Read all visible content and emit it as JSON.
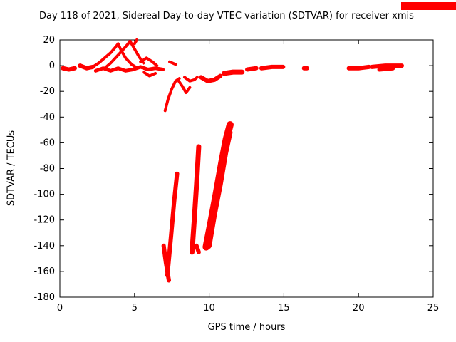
{
  "chart_data": {
    "type": "scatter",
    "title": "Day 118 of 2021, Sidereal Day-to-day VTEC variation (SDTVAR) for receiver xmis",
    "xlabel": "GPS time / hours",
    "ylabel": "SDTVAR / TECUs",
    "xlim": [
      0,
      25
    ],
    "ylim": [
      -180,
      20
    ],
    "xticks": [
      0,
      5,
      10,
      15,
      20,
      25
    ],
    "yticks": [
      20,
      0,
      -20,
      -40,
      -60,
      -80,
      -100,
      -120,
      -140,
      -160,
      -180
    ],
    "grid": false,
    "legend_position": "top-right-outside",
    "series_color": "#ff0000",
    "axis_color": "#000000",
    "strokes": [
      {
        "w": 6,
        "pts": [
          [
            0.2,
            -2
          ],
          [
            0.6,
            -3
          ],
          [
            1.0,
            -2
          ]
        ]
      },
      {
        "w": 6,
        "pts": [
          [
            1.35,
            0
          ],
          [
            1.8,
            -2
          ],
          [
            2.2,
            -1
          ]
        ]
      },
      {
        "w": 4,
        "pts": [
          [
            2.2,
            -1
          ],
          [
            2.6,
            2
          ],
          [
            3.0,
            6
          ],
          [
            3.4,
            10
          ],
          [
            3.7,
            14
          ],
          [
            3.9,
            17
          ]
        ]
      },
      {
        "w": 4,
        "pts": [
          [
            3.0,
            -2
          ],
          [
            3.4,
            2
          ],
          [
            3.8,
            7
          ],
          [
            4.2,
            12
          ],
          [
            4.5,
            16
          ],
          [
            4.7,
            19
          ]
        ]
      },
      {
        "w": 4,
        "pts": [
          [
            3.9,
            17
          ],
          [
            4.1,
            12
          ],
          [
            4.4,
            6
          ],
          [
            4.8,
            1
          ],
          [
            5.2,
            -2
          ]
        ]
      },
      {
        "w": 4,
        "pts": [
          [
            4.7,
            19
          ],
          [
            5.0,
            13
          ],
          [
            5.3,
            7
          ],
          [
            5.6,
            2
          ]
        ]
      },
      {
        "w": 4,
        "pts": [
          [
            5.0,
            17
          ],
          [
            5.15,
            20
          ]
        ]
      },
      {
        "w": 5,
        "pts": [
          [
            2.4,
            -4
          ],
          [
            2.9,
            -2
          ],
          [
            3.4,
            -4
          ],
          [
            3.9,
            -2
          ],
          [
            4.4,
            -4
          ],
          [
            4.9,
            -3
          ]
        ]
      },
      {
        "w": 5,
        "pts": [
          [
            4.9,
            -3
          ],
          [
            5.4,
            -1
          ],
          [
            5.9,
            -3
          ],
          [
            6.4,
            -2
          ],
          [
            6.9,
            -3
          ]
        ]
      },
      {
        "w": 4,
        "pts": [
          [
            5.4,
            3
          ],
          [
            5.8,
            6
          ],
          [
            6.2,
            3
          ],
          [
            6.5,
            0
          ]
        ]
      },
      {
        "w": 4,
        "pts": [
          [
            5.6,
            -5
          ],
          [
            6.0,
            -8
          ],
          [
            6.4,
            -6
          ]
        ]
      },
      {
        "w": 4,
        "pts": [
          [
            7.05,
            -35
          ],
          [
            7.25,
            -26
          ],
          [
            7.5,
            -18
          ],
          [
            7.75,
            -12
          ],
          [
            8.0,
            -10
          ]
        ]
      },
      {
        "w": 4,
        "pts": [
          [
            7.35,
            3
          ],
          [
            7.75,
            1
          ]
        ]
      },
      {
        "w": 4,
        "pts": [
          [
            7.9,
            -11
          ],
          [
            8.2,
            -16
          ],
          [
            8.45,
            -21
          ],
          [
            8.7,
            -17
          ]
        ]
      },
      {
        "w": 4,
        "pts": [
          [
            8.35,
            -9
          ],
          [
            8.7,
            -12
          ],
          [
            9.0,
            -11
          ],
          [
            9.2,
            -9
          ]
        ]
      },
      {
        "w": 6,
        "pts": [
          [
            9.45,
            -9
          ],
          [
            9.9,
            -12
          ],
          [
            10.35,
            -11
          ],
          [
            10.75,
            -8
          ]
        ]
      },
      {
        "w": 7,
        "pts": [
          [
            11.0,
            -6
          ],
          [
            11.6,
            -5
          ],
          [
            12.2,
            -5
          ]
        ]
      },
      {
        "w": 6,
        "pts": [
          [
            12.55,
            -3
          ],
          [
            13.15,
            -2
          ]
        ]
      },
      {
        "w": 6,
        "pts": [
          [
            13.5,
            -2
          ],
          [
            14.2,
            -1
          ],
          [
            14.95,
            -1
          ]
        ]
      },
      {
        "w": 6,
        "pts": [
          [
            16.35,
            -2
          ],
          [
            16.55,
            -2
          ]
        ]
      },
      {
        "w": 6,
        "pts": [
          [
            19.35,
            -2
          ],
          [
            20.0,
            -2
          ],
          [
            20.7,
            -1
          ]
        ]
      },
      {
        "w": 6,
        "pts": [
          [
            20.9,
            -1
          ],
          [
            21.8,
            0
          ],
          [
            22.9,
            0
          ]
        ]
      },
      {
        "w": 6,
        "pts": [
          [
            21.4,
            -3
          ],
          [
            22.3,
            -2
          ]
        ]
      },
      {
        "w": 6,
        "pts": [
          [
            6.95,
            -140
          ],
          [
            7.1,
            -153
          ],
          [
            7.3,
            -167
          ]
        ]
      },
      {
        "w": 6,
        "pts": [
          [
            7.2,
            -163
          ],
          [
            7.45,
            -132
          ],
          [
            7.65,
            -106
          ],
          [
            7.85,
            -84
          ]
        ]
      },
      {
        "w": 7,
        "pts": [
          [
            8.85,
            -145
          ],
          [
            9.0,
            -120
          ],
          [
            9.15,
            -93
          ],
          [
            9.3,
            -63
          ]
        ]
      },
      {
        "w": 6,
        "pts": [
          [
            9.15,
            -140
          ],
          [
            9.3,
            -145
          ]
        ]
      },
      {
        "w": 10,
        "pts": [
          [
            9.8,
            -141
          ],
          [
            10.15,
            -120
          ],
          [
            10.5,
            -98
          ],
          [
            10.85,
            -75
          ],
          [
            11.15,
            -57
          ],
          [
            11.4,
            -46
          ]
        ]
      },
      {
        "w": 9,
        "pts": [
          [
            9.95,
            -140
          ],
          [
            10.3,
            -116
          ],
          [
            10.7,
            -92
          ],
          [
            11.05,
            -68
          ],
          [
            11.35,
            -52
          ]
        ]
      }
    ]
  }
}
